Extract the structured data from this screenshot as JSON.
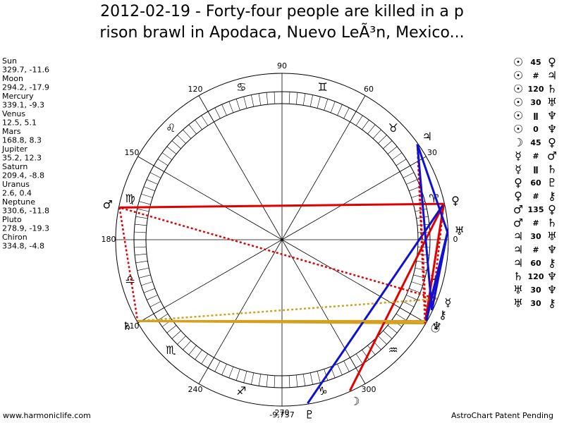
{
  "title": {
    "line1": "2012-02-19 - Forty-four people are killed in a p",
    "line2": "rison brawl in Apodaca, Nuevo LeÃ³n, Mexico..."
  },
  "planets": [
    {
      "name": "Sun",
      "position": "329.7, -11.6",
      "glyph": "☉"
    },
    {
      "name": "Moon",
      "position": "294.2, -17.9",
      "glyph": "☽"
    },
    {
      "name": "Mercury",
      "position": "339.1, -9.3",
      "glyph": "☿"
    },
    {
      "name": "Venus",
      "position": "12.5, 5.1",
      "glyph": "♀"
    },
    {
      "name": "Mars",
      "position": "168.8, 8.3",
      "glyph": "♂"
    },
    {
      "name": "Jupiter",
      "position": "35.2, 12.3",
      "glyph": "♃"
    },
    {
      "name": "Saturn",
      "position": "209.4, -8.8",
      "glyph": "♄"
    },
    {
      "name": "Uranus",
      "position": "2.6, 0.4",
      "glyph": "♅"
    },
    {
      "name": "Neptune",
      "position": "330.6, -11.8",
      "glyph": "♆"
    },
    {
      "name": "Pluto",
      "position": "278.9, -19.3",
      "glyph": "♇"
    },
    {
      "name": "Chiron",
      "position": "334.8, -4.8",
      "glyph": "⚷"
    }
  ],
  "aspects": [
    {
      "from": "☉",
      "aspect": "45",
      "to": "♀",
      "color": "#e00000",
      "style": "solid"
    },
    {
      "from": "☉",
      "aspect": "#",
      "to": "♃",
      "color": "#e00000",
      "style": "dotted"
    },
    {
      "from": "☉",
      "aspect": "120",
      "to": "♄",
      "color": "#d4a020",
      "style": "solid"
    },
    {
      "from": "☉",
      "aspect": "30",
      "to": "♅",
      "color": "#1010d0",
      "style": "solid"
    },
    {
      "from": "☉",
      "aspect": "ǁ",
      "to": "♆",
      "color": "#e00000",
      "style": "dotted"
    },
    {
      "from": "☉",
      "aspect": "0",
      "to": "♆",
      "color": "#e00000",
      "style": "solid"
    },
    {
      "from": "☽",
      "aspect": "45",
      "to": "♀",
      "color": "#e00000",
      "style": "solid"
    },
    {
      "from": "☿",
      "aspect": "#",
      "to": "♂",
      "color": "#e00000",
      "style": "dotted"
    },
    {
      "from": "☿",
      "aspect": "ǁ",
      "to": "♄",
      "color": "#d4a020",
      "style": "dotted"
    },
    {
      "from": "♀",
      "aspect": "60",
      "to": "♇",
      "color": "#1010d0",
      "style": "solid"
    },
    {
      "from": "♀",
      "aspect": "#",
      "to": "⚷",
      "color": "#e00000",
      "style": "dotted"
    },
    {
      "from": "♂",
      "aspect": "135",
      "to": "♀",
      "color": "#e00000",
      "style": "solid"
    },
    {
      "from": "♂",
      "aspect": "#",
      "to": "♄",
      "color": "#e00000",
      "style": "dotted"
    },
    {
      "from": "♃",
      "aspect": "30",
      "to": "♅",
      "color": "#1010d0",
      "style": "solid"
    },
    {
      "from": "♃",
      "aspect": "#",
      "to": "♆",
      "color": "#e00000",
      "style": "dotted"
    },
    {
      "from": "♃",
      "aspect": "60",
      "to": "⚷",
      "color": "#1010d0",
      "style": "solid"
    },
    {
      "from": "♄",
      "aspect": "120",
      "to": "♆",
      "color": "#d4a020",
      "style": "solid"
    },
    {
      "from": "♅",
      "aspect": "30",
      "to": "♆",
      "color": "#1010d0",
      "style": "solid"
    },
    {
      "from": "♅",
      "aspect": "30",
      "to": "⚷",
      "color": "#1010d0",
      "style": "solid"
    }
  ],
  "signs": [
    "♈",
    "♉",
    "♊",
    "♋",
    "♌",
    "♍",
    "♎",
    "♏",
    "♐",
    "♑",
    "♒",
    "♓"
  ],
  "degree_labels": [
    0,
    30,
    60,
    90,
    120,
    150,
    180,
    210,
    240,
    270,
    300
  ],
  "center_value": "-9,737",
  "footer": {
    "left": "www.harmoniclife.com",
    "right": "AstroChart Patent Pending"
  }
}
